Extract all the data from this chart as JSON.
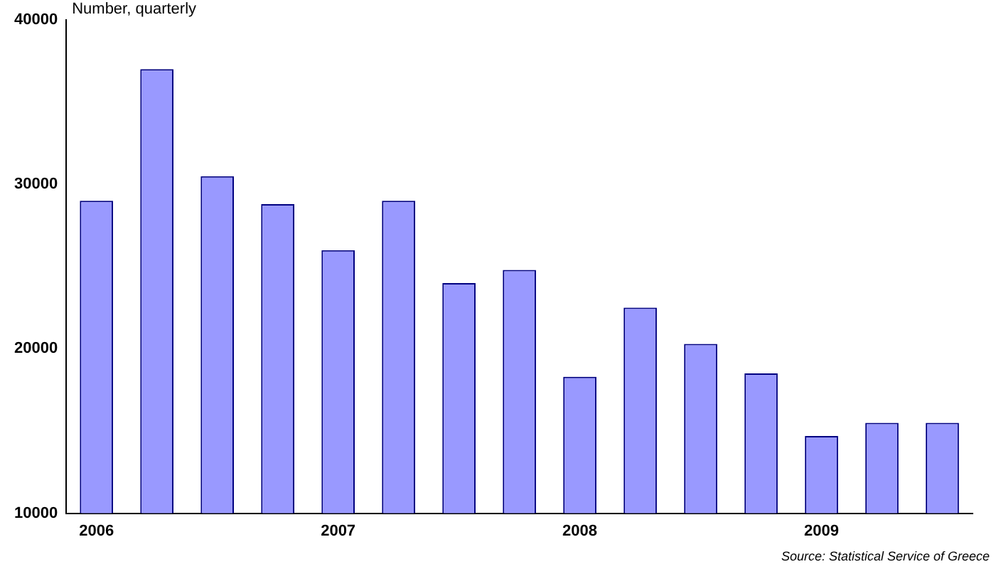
{
  "chart_data": {
    "type": "bar",
    "ylabel": "Number, quarterly",
    "annotations": [
      "Source: Statistical Service of Greece"
    ],
    "categories": [
      "2006",
      null,
      null,
      null,
      "2007",
      null,
      null,
      null,
      "2008",
      null,
      null,
      null,
      "2009",
      null,
      null
    ],
    "values": [
      29000,
      37000,
      30500,
      28800,
      26000,
      29000,
      24000,
      24800,
      18300,
      22500,
      20300,
      18500,
      14700,
      15500,
      15500
    ],
    "color": "#9999ff",
    "ylim": [
      10000,
      40000
    ],
    "yticks": [
      10000,
      20000,
      30000,
      40000
    ],
    "grid": false,
    "legend": false
  }
}
